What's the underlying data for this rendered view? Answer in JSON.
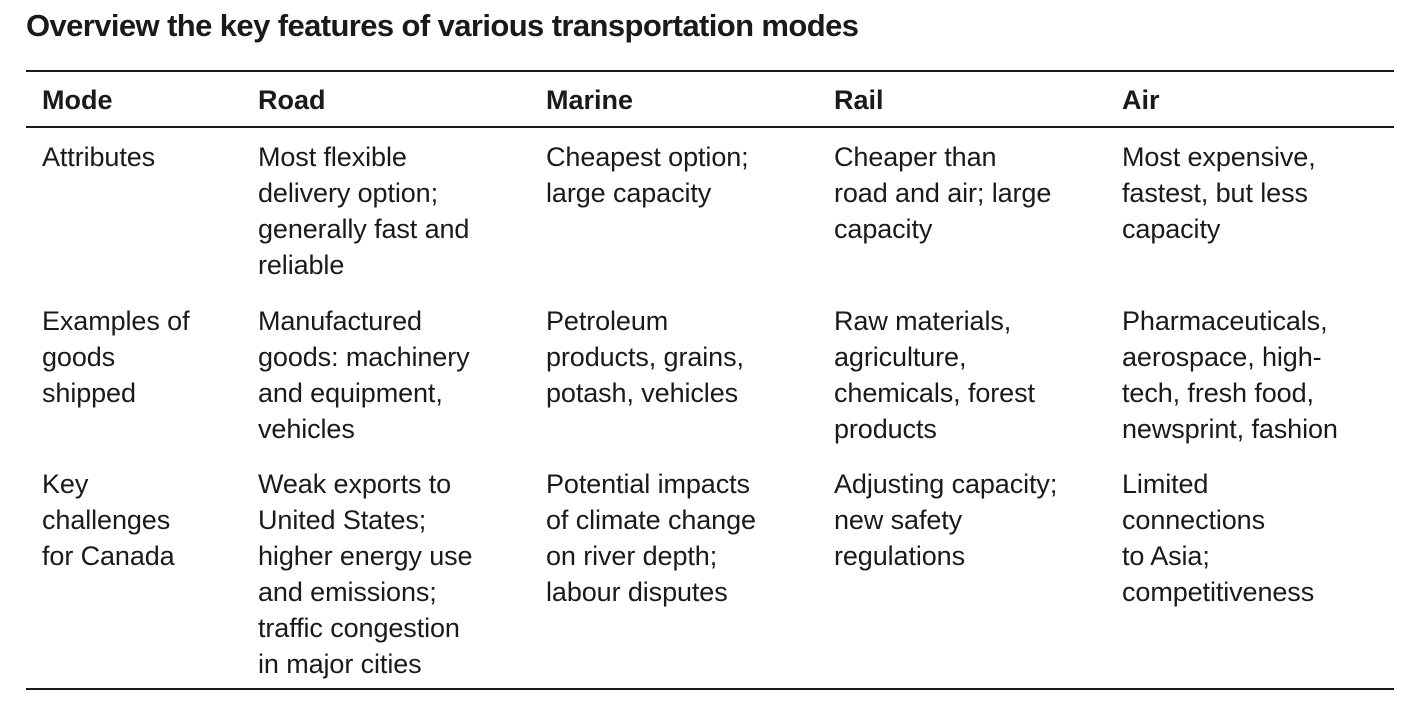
{
  "title": "Overview the key features of various transportation modes",
  "table": {
    "headers": [
      "Mode",
      "Road",
      "Marine",
      "Rail",
      "Air"
    ],
    "rows": [
      {
        "label": "Attributes",
        "cells": [
          "Most flexible\ndelivery option;\ngenerally fast and\nreliable",
          "Cheapest option;\nlarge capacity",
          "Cheaper than\nroad and air; large\ncapacity",
          "Most expensive,\nfastest, but less\ncapacity"
        ]
      },
      {
        "label": "Examples of\ngoods\nshipped",
        "cells": [
          "Manufactured\ngoods: machinery\nand equipment,\nvehicles",
          "Petroleum\nproducts, grains,\npotash, vehicles",
          "Raw materials,\nagriculture,\nchemicals, forest\nproducts",
          "Pharmaceuticals,\naerospace, high-\ntech, fresh food,\nnewsprint, fashion"
        ]
      },
      {
        "label": "Key\nchallenges\nfor Canada",
        "cells": [
          "Weak exports to\nUnited States;\nhigher energy use\nand emissions;\ntraffic congestion\nin major cities",
          "Potential impacts\nof climate change\non river depth;\nlabour disputes",
          "Adjusting capacity;\nnew safety\nregulations",
          "Limited\nconnections\nto Asia;\ncompetitiveness"
        ]
      }
    ]
  }
}
